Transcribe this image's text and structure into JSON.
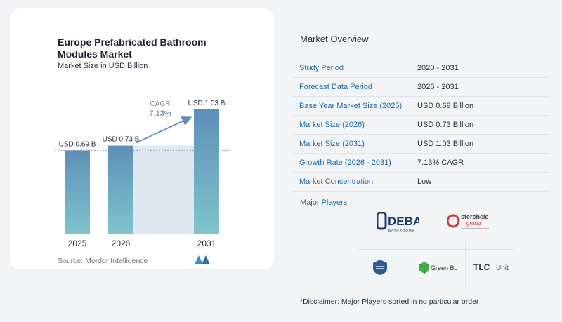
{
  "chart": {
    "title": "Europe Prefabricated Bathroom Modules Market",
    "subtitle": "Market Size in USD Billion",
    "source": "Source:  Mordor Intelligence",
    "cagr_label": "CAGR",
    "cagr_value": "7.13%"
  },
  "chart_data": {
    "type": "bar",
    "title": "Europe Prefabricated Bathroom Modules Market",
    "subtitle": "Market Size in USD Billion",
    "categories": [
      "2025",
      "2026",
      "2031"
    ],
    "values": [
      0.69,
      0.73,
      1.03
    ],
    "data_labels": [
      "USD 0.69 B",
      "USD 0.73 B",
      "USD 1.03 B"
    ],
    "ylim": [
      0,
      1.03
    ],
    "grid": false,
    "annotation": "CAGR 7.13%",
    "colors": {
      "bar_top": "#5e8fb8",
      "bar_bottom": "#7fc4cc",
      "band": "#dde8f0",
      "arrow": "#5e8fb8"
    }
  },
  "overview": {
    "title": "Market Overview",
    "rows": [
      {
        "label": "Study Period",
        "value": "2020 - 2031"
      },
      {
        "label": "Forecast Data Period",
        "value": "2026 - 2031"
      },
      {
        "label": "Base Year Market Size (2025)",
        "value": "USD 0.69 Billion"
      },
      {
        "label": "Market Size (2026)",
        "value": "USD 0.73 Billion"
      },
      {
        "label": "Market Size (2031)",
        "value": "USD 1.03 Billion"
      },
      {
        "label": "Growth Rate (2026 - 2031)",
        "value": "7.13% CAGR"
      },
      {
        "label": "Market Concentration",
        "value": "Low"
      }
    ]
  },
  "players": {
    "title": "Major Players",
    "logos": {
      "deba_main": "DEBA",
      "deba_sub": "BATHROOMS",
      "sterchele_main": "sterchele",
      "sterchele_sub": "group",
      "greenbox": "Green Box",
      "tlc_main": "TLC",
      "tlc_sub": "Unit"
    }
  },
  "disclaimer": "*Disclaimer: Major Players sorted in no particular order"
}
